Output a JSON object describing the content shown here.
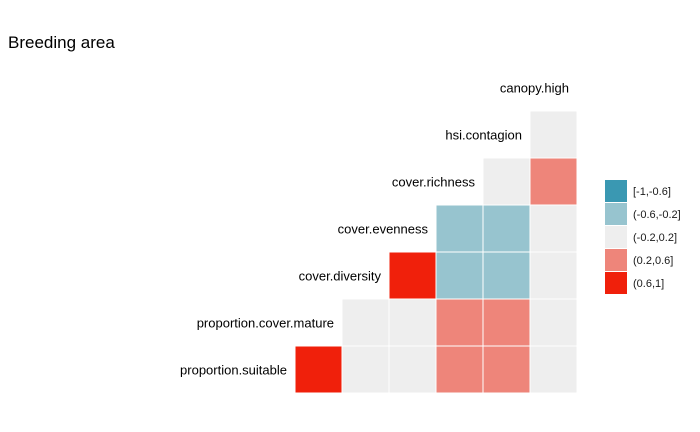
{
  "chart_data": {
    "type": "heatmap",
    "title": "Breeding area",
    "variables": [
      "proportion.suitable",
      "proportion.cover.mature",
      "cover.diversity",
      "cover.evenness",
      "cover.richness",
      "hsi.contagion",
      "canopy.high"
    ],
    "cell_bins": [
      [
        4,
        2,
        2,
        3,
        3,
        2
      ],
      [
        2,
        2,
        3,
        3,
        2
      ],
      [
        4,
        1,
        1,
        2
      ],
      [
        1,
        1,
        2
      ],
      [
        2,
        3
      ],
      [
        2
      ]
    ],
    "legend": {
      "placement": "right",
      "entries": [
        {
          "label": "[-1,-0.6]",
          "color": "#3a98b2"
        },
        {
          "label": "(-0.6,-0.2]",
          "color": "#97c4cf"
        },
        {
          "label": "(-0.2,0.2]",
          "color": "#eeeeee"
        },
        {
          "label": "(0.2,0.6]",
          "color": "#ee857a"
        },
        {
          "label": "(0.6,1]",
          "color": "#f0200b"
        }
      ]
    }
  }
}
